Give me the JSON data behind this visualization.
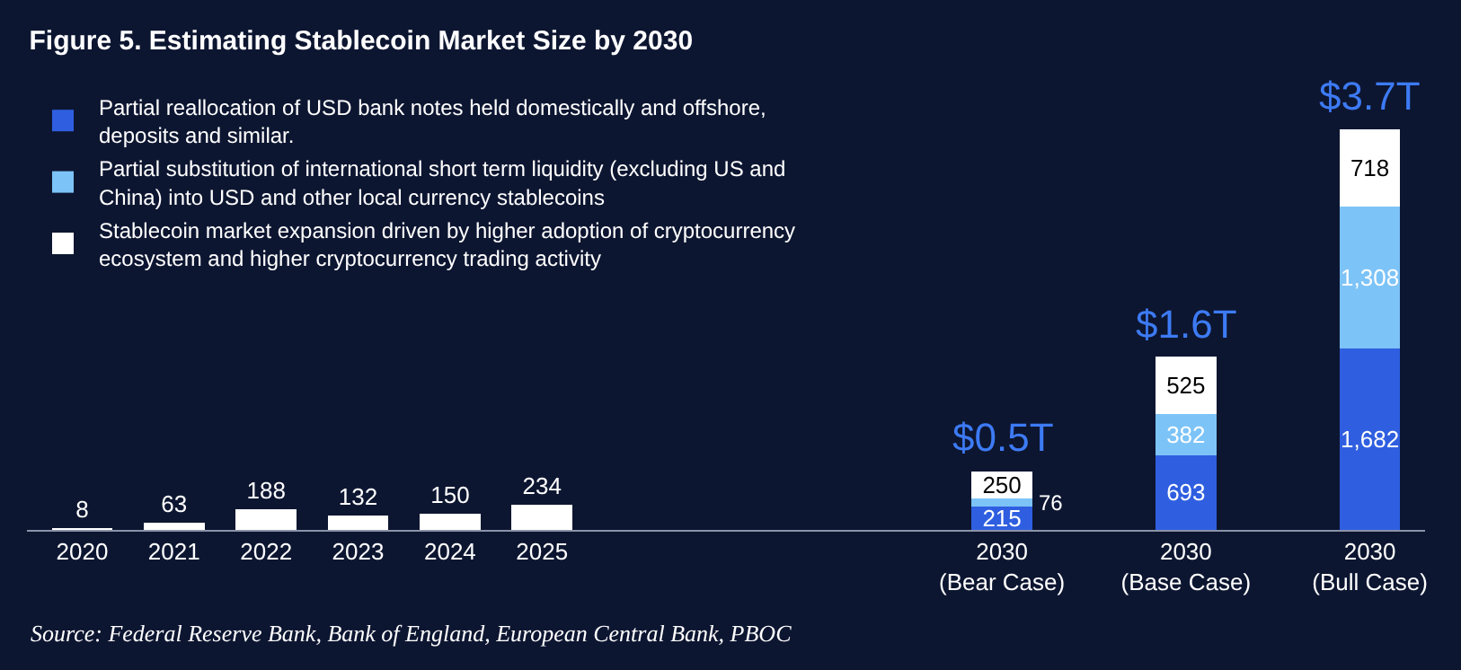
{
  "chart_data": {
    "type": "bar",
    "stacked": true,
    "title": "Figure 5. Estimating Stablecoin Market Size by 2030",
    "categories": [
      "2020",
      "2021",
      "2022",
      "2023",
      "2024",
      "2025",
      null,
      null,
      null,
      null,
      "2030\n(Bear Case)",
      null,
      "2030\n(Base Case)",
      null,
      "2030\n(Bull Case)"
    ],
    "series": [
      {
        "name": "Partial reallocation of USD bank notes held domestically and offshore, deposits and similar.",
        "color": "#2f5fe0",
        "values": [
          null,
          null,
          null,
          null,
          null,
          null,
          null,
          null,
          null,
          null,
          215,
          null,
          693,
          null,
          1682
        ],
        "value_labels": [
          null,
          null,
          null,
          null,
          null,
          null,
          null,
          null,
          null,
          null,
          "215",
          null,
          "693",
          null,
          "1,682"
        ]
      },
      {
        "name": "Partial substitution of international short term liquidity (excluding US and China) into USD and other local currency stablecoins",
        "color": "#7cc3f7",
        "values": [
          null,
          null,
          null,
          null,
          null,
          null,
          null,
          null,
          null,
          null,
          76,
          null,
          382,
          null,
          1308
        ],
        "value_labels": [
          null,
          null,
          null,
          null,
          null,
          null,
          null,
          null,
          null,
          null,
          "76",
          null,
          "382",
          null,
          "1,308"
        ]
      },
      {
        "name": "Stablecoin market expansion driven by higher adoption of cryptocurrency ecosystem and higher cryptocurrency trading activity",
        "color": "#ffffff",
        "values": [
          8,
          63,
          188,
          132,
          150,
          234,
          null,
          null,
          null,
          null,
          250,
          null,
          525,
          null,
          718
        ],
        "value_labels": [
          "8",
          "63",
          "188",
          "132",
          "150",
          "234",
          null,
          null,
          null,
          null,
          "250",
          null,
          "525",
          null,
          "718"
        ]
      }
    ],
    "totals": [
      null,
      null,
      null,
      null,
      null,
      null,
      null,
      null,
      null,
      null,
      "$0.5T",
      null,
      "$1.6T",
      null,
      "$3.7T"
    ],
    "legend": "top left",
    "grid": false,
    "annotations": [
      "Source: Federal Reserve Bank, Bank of England, European Central Bank, PBOC"
    ]
  }
}
